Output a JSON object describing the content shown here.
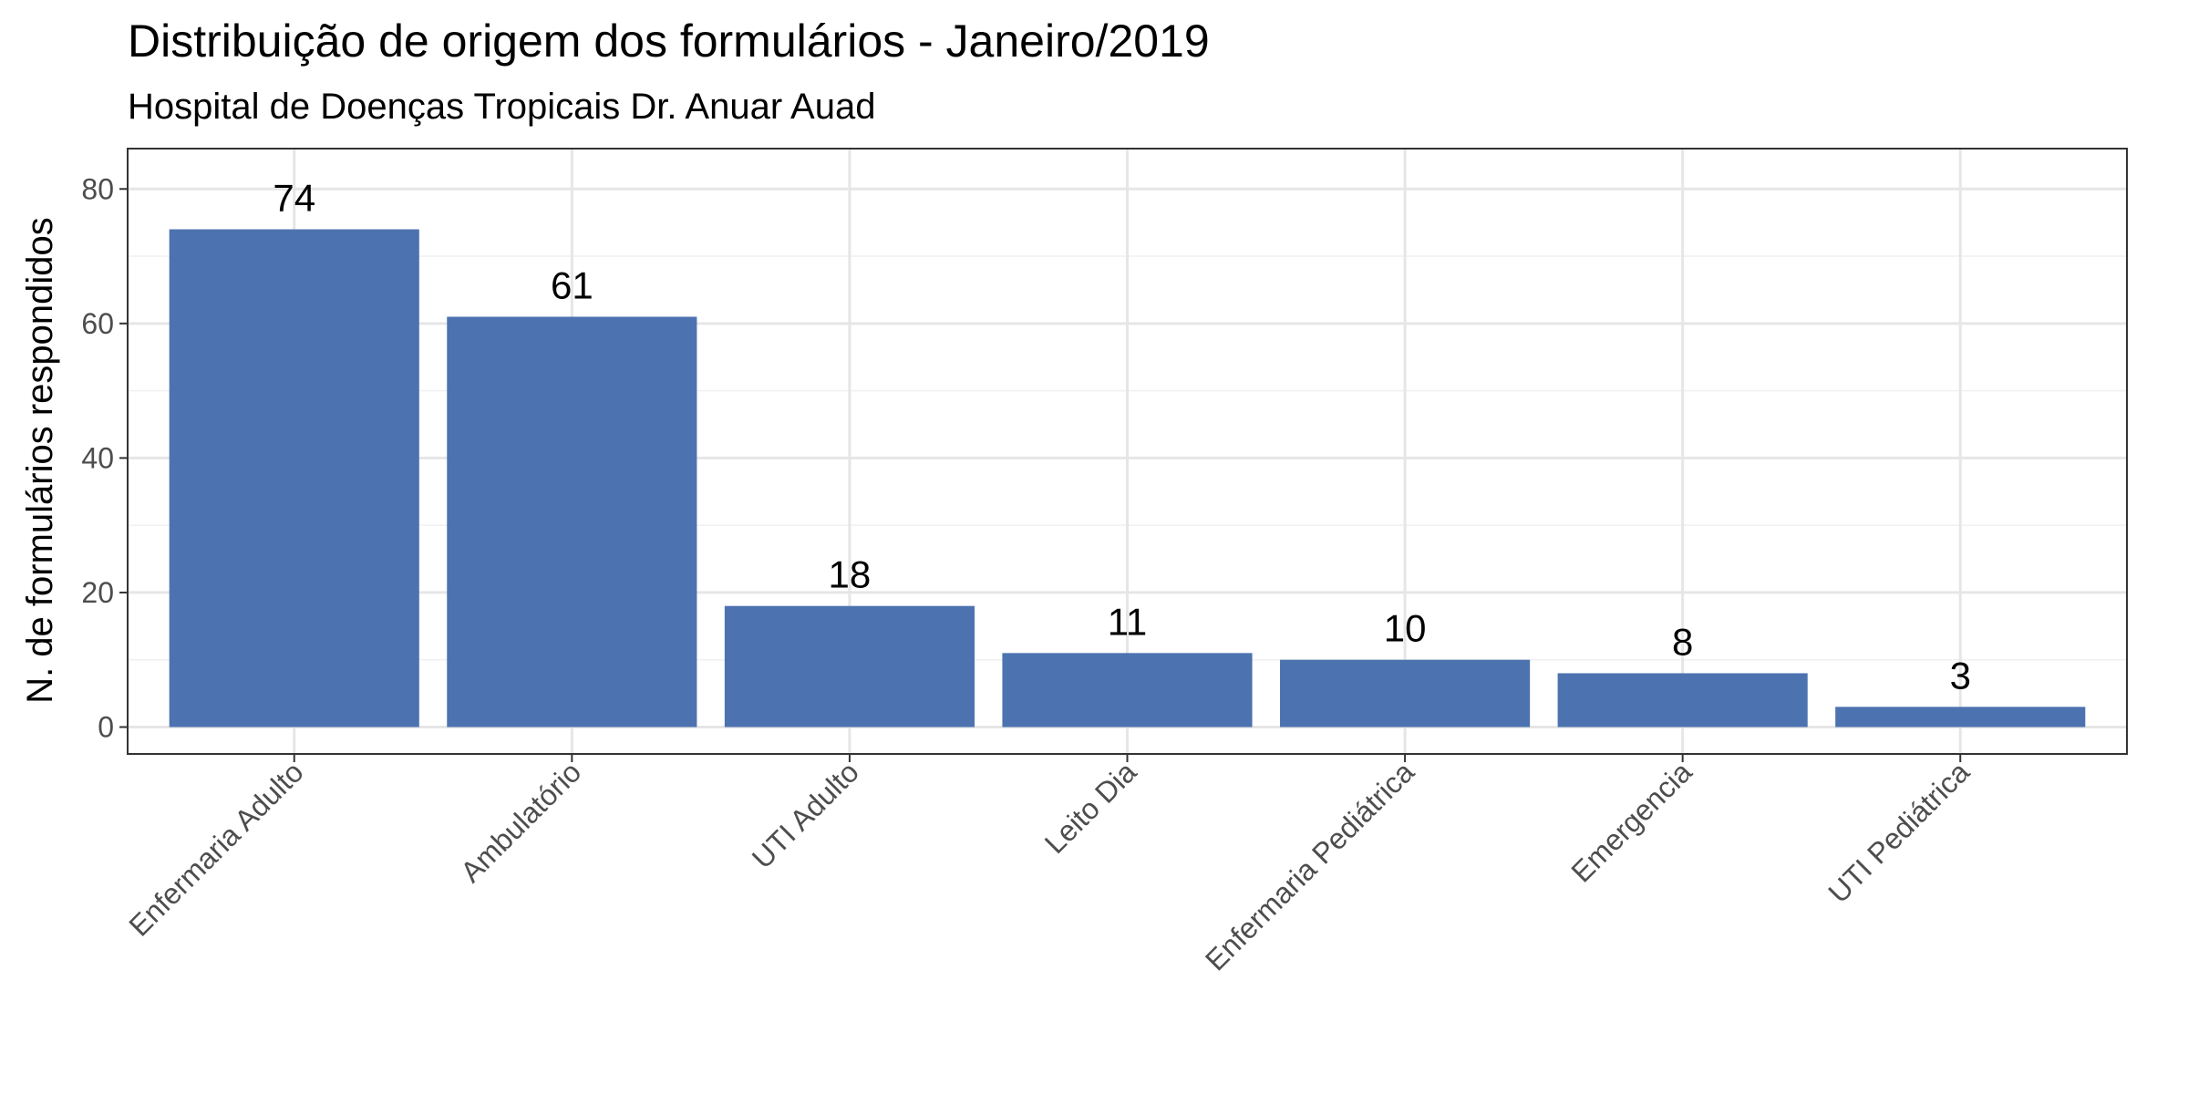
{
  "chart_data": {
    "type": "bar",
    "title": "Distribuição de origem dos formulários - Janeiro/2019",
    "subtitle": "Hospital de Doenças Tropicais Dr. Anuar Auad",
    "xlabel": "",
    "ylabel": "N. de formulários respondidos",
    "categories": [
      "Enfermaria Adulto",
      "Ambulatório",
      "UTI Adulto",
      "Leito Dia",
      "Enfermaria Pediátrica",
      "Emergencia",
      "UTI Pediátrica"
    ],
    "values": [
      74,
      61,
      18,
      11,
      10,
      8,
      3
    ],
    "data_labels": [
      "74",
      "61",
      "18",
      "11",
      "10",
      "8",
      "3"
    ],
    "ylim": [
      -4,
      86
    ],
    "yticks": [
      0,
      20,
      40,
      60,
      80
    ],
    "ytick_labels": [
      "0",
      "20",
      "40",
      "60",
      "80"
    ],
    "bar_color": "#4c72b0",
    "grid": true,
    "legend": "none"
  }
}
